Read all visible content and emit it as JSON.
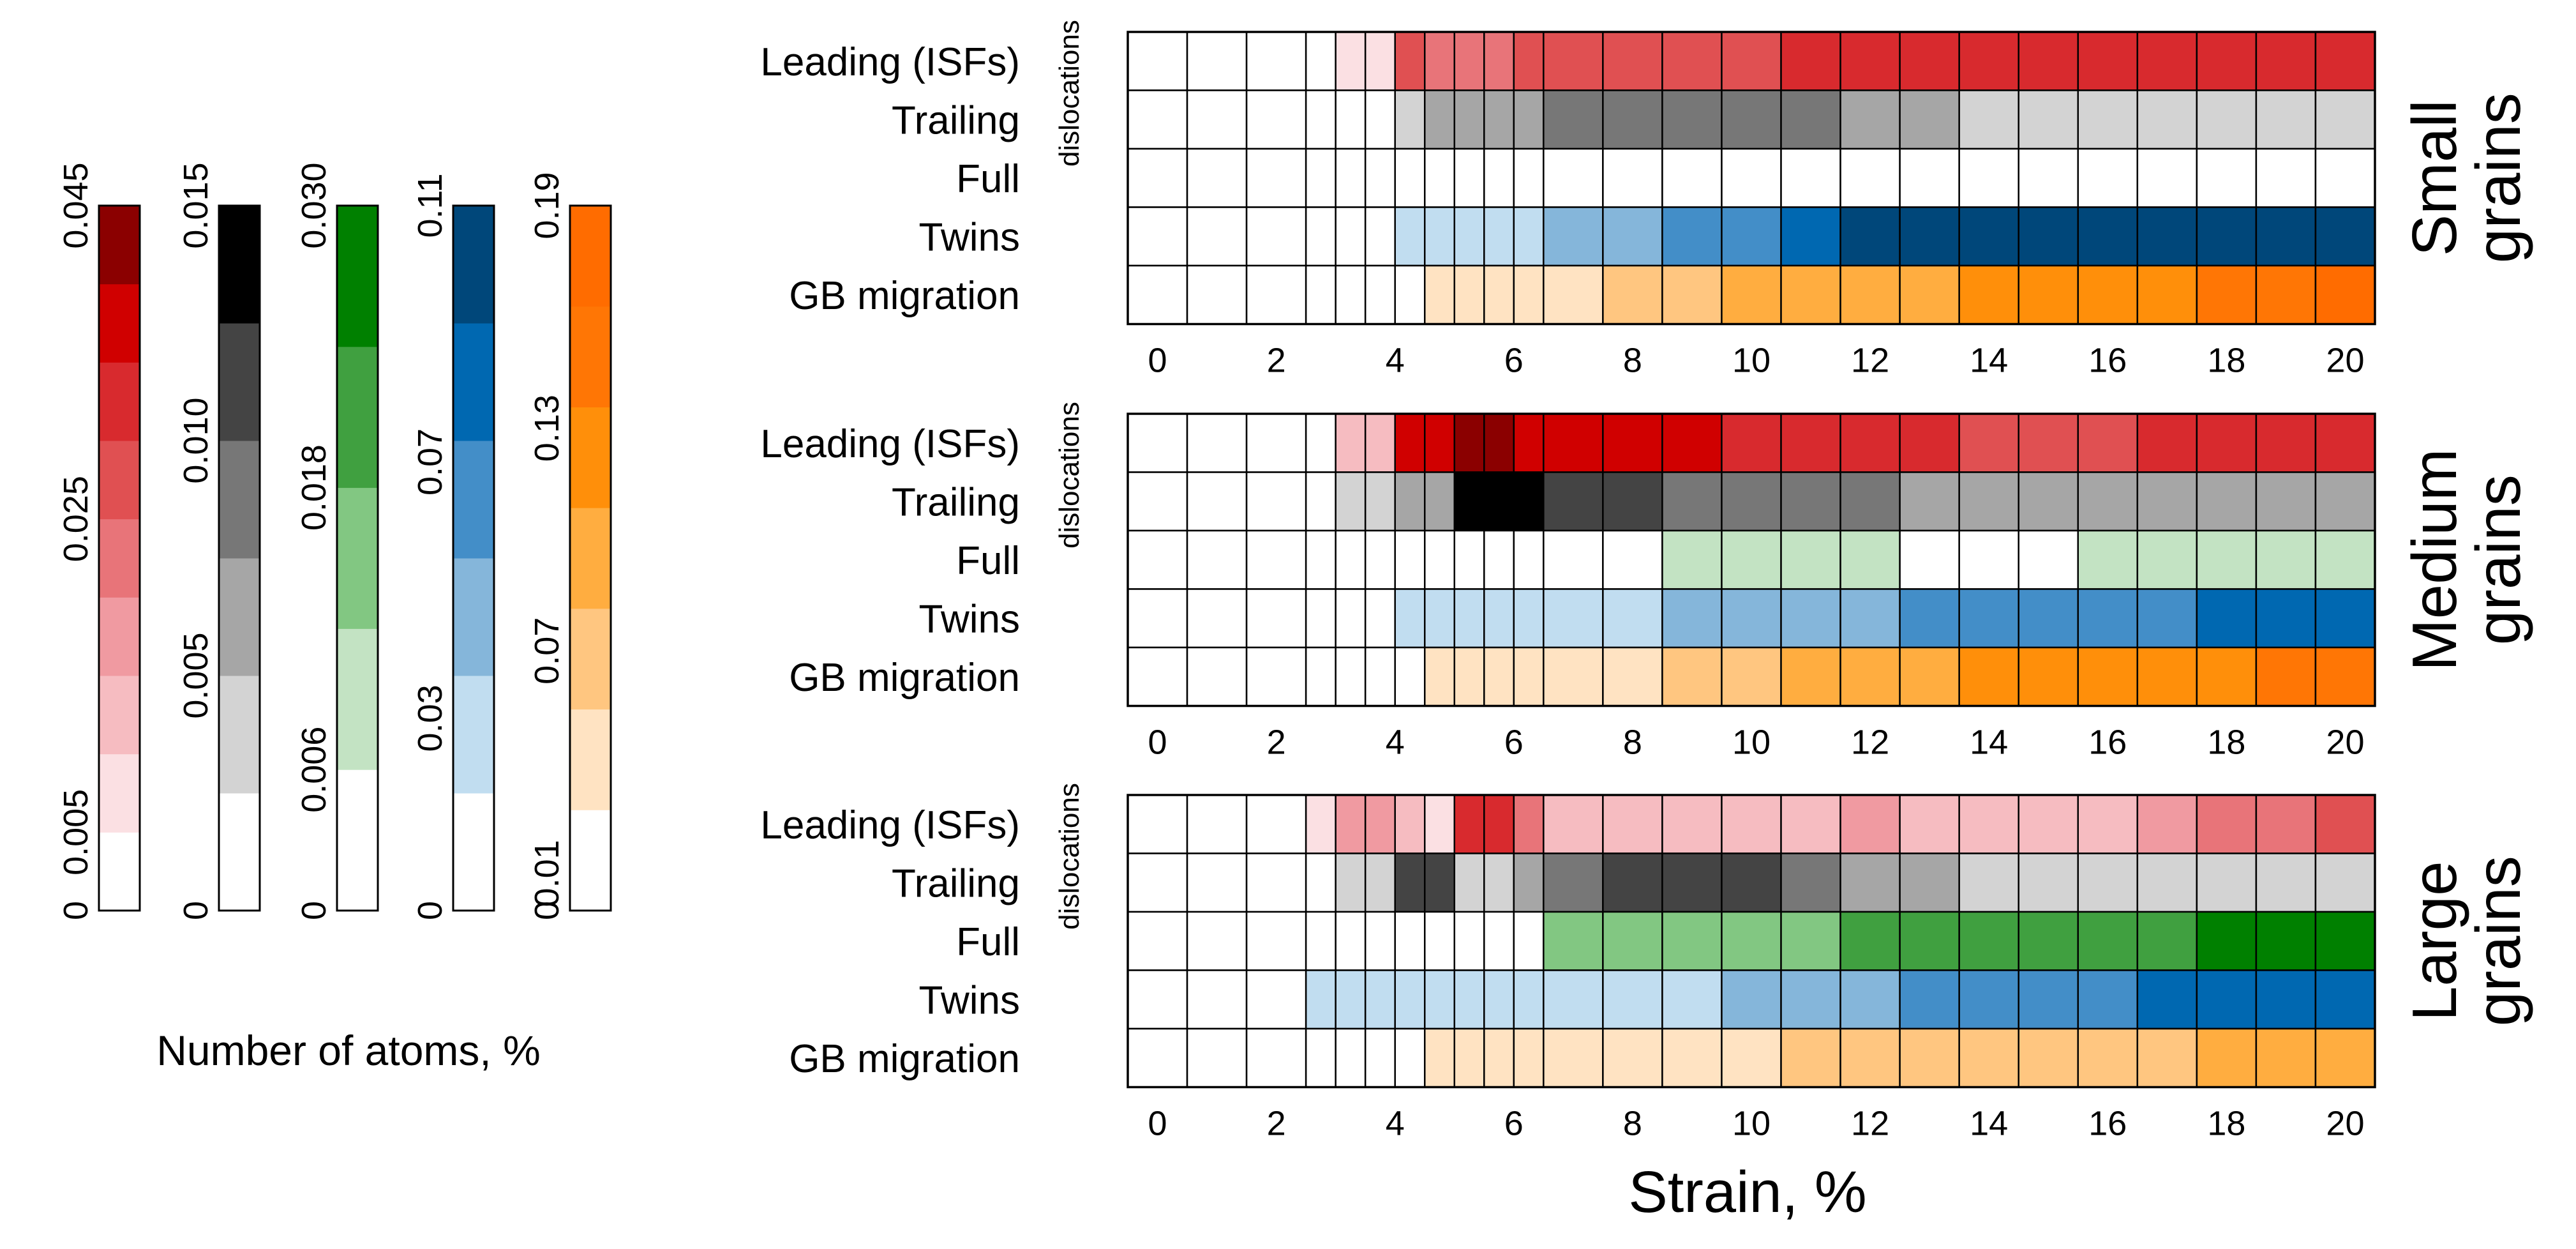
{
  "colors": {
    "red": [
      "#ffffff",
      "#fbe0e3",
      "#f6bcc1",
      "#f09aa1",
      "#e87479",
      "#e05052",
      "#d82a2e",
      "#d00000",
      "#8b0000"
    ],
    "gray": [
      "#ffffff",
      "#d3d3d3",
      "#a6a6a6",
      "#777777",
      "#444444",
      "#000000"
    ],
    "green": [
      "#ffffff",
      "#c3e3c3",
      "#82c782",
      "#40a040",
      "#008000"
    ],
    "blue": [
      "#ffffff",
      "#c1ddf0",
      "#85b6da",
      "#438ec8",
      "#0068b1",
      "#00477a"
    ],
    "orange": [
      "#ffffff",
      "#ffe3c2",
      "#ffc680",
      "#ffad40",
      "#ff8f0a",
      "#ff7605",
      "#ff6c00"
    ],
    "grid": "#000000"
  },
  "legend": {
    "caption": "Number of atoms, %",
    "bars": [
      {
        "palette": "red",
        "levels": 9,
        "ticks": [
          {
            "label": "0",
            "value": 0
          },
          {
            "label": "0.005",
            "value": 0.005
          },
          {
            "label": "0.025",
            "value": 0.025
          },
          {
            "label": "0.045",
            "value": 0.045
          }
        ],
        "max": 0.045
      },
      {
        "palette": "gray",
        "levels": 6,
        "ticks": [
          {
            "label": "0",
            "value": 0
          },
          {
            "label": "0.005",
            "value": 0.005
          },
          {
            "label": "0.010",
            "value": 0.01
          },
          {
            "label": "0.015",
            "value": 0.015
          }
        ],
        "max": 0.015
      },
      {
        "palette": "green",
        "levels": 5,
        "ticks": [
          {
            "label": "0",
            "value": 0
          },
          {
            "label": "0.006",
            "value": 0.006
          },
          {
            "label": "0.018",
            "value": 0.018
          },
          {
            "label": "0.030",
            "value": 0.03
          }
        ],
        "max": 0.03
      },
      {
        "palette": "blue",
        "levels": 6,
        "ticks": [
          {
            "label": "0",
            "value": 0
          },
          {
            "label": "0.03",
            "value": 0.03
          },
          {
            "label": "0.07",
            "value": 0.07
          },
          {
            "label": "0.11",
            "value": 0.11
          }
        ],
        "max": 0.11
      },
      {
        "palette": "orange",
        "levels": 7,
        "ticks": [
          {
            "label": "0",
            "value": 0
          },
          {
            "label": "0.01",
            "value": 0.01
          },
          {
            "label": "0.07",
            "value": 0.07
          },
          {
            "label": "0.13",
            "value": 0.13
          },
          {
            "label": "0.19",
            "value": 0.19
          }
        ],
        "max": 0.19
      }
    ]
  },
  "chart_data": {
    "type": "heatmap",
    "xlabel": "Strain, %",
    "x_tick_labels": [
      "0",
      "2",
      "4",
      "6",
      "8",
      "10",
      "12",
      "14",
      "16",
      "18",
      "20"
    ],
    "x_ticks": [
      0,
      2,
      4,
      6,
      8,
      10,
      12,
      14,
      16,
      18,
      20
    ],
    "x_range": [
      0,
      21
    ],
    "strain_columns": [
      0.5,
      1.5,
      2.5,
      3.25,
      3.75,
      4.25,
      4.75,
      5.25,
      5.75,
      6.25,
      6.75,
      7.5,
      8.5,
      9.5,
      10.5,
      11.5,
      12.5,
      13.5,
      14.5,
      15.5,
      16.5,
      17.5,
      18.5,
      19.5,
      20.5
    ],
    "column_widths": [
      1,
      1,
      1,
      0.5,
      0.5,
      0.5,
      0.5,
      0.5,
      0.5,
      0.5,
      0.5,
      1,
      1,
      1,
      1,
      1,
      1,
      1,
      1,
      1,
      1,
      1,
      1,
      1,
      1
    ],
    "dislocations_label": "dislocations",
    "row_labels": [
      "Leading (ISFs)",
      "Trailing",
      "Full",
      "Twins",
      "GB migration"
    ],
    "row_palettes": [
      "red",
      "gray",
      "green",
      "blue",
      "orange"
    ],
    "panels": [
      {
        "title": "Small grains",
        "title_lines": [
          "Small",
          "grains"
        ],
        "levels": [
          [
            0,
            0,
            0,
            0,
            1,
            1,
            5,
            4,
            4,
            4,
            5,
            5,
            5,
            5,
            5,
            6,
            6,
            6,
            6,
            6,
            6,
            6,
            6,
            6,
            6
          ],
          [
            0,
            0,
            0,
            0,
            0,
            0,
            1,
            2,
            2,
            2,
            2,
            3,
            3,
            3,
            3,
            3,
            2,
            2,
            1,
            1,
            1,
            1,
            1,
            1,
            1
          ],
          [
            0,
            0,
            0,
            0,
            0,
            0,
            0,
            0,
            0,
            0,
            0,
            0,
            0,
            0,
            0,
            0,
            0,
            0,
            0,
            0,
            0,
            0,
            0,
            0,
            0
          ],
          [
            0,
            0,
            0,
            0,
            0,
            0,
            1,
            1,
            1,
            1,
            1,
            2,
            2,
            3,
            3,
            4,
            5,
            5,
            5,
            5,
            5,
            5,
            5,
            5,
            5
          ],
          [
            0,
            0,
            0,
            0,
            0,
            0,
            0,
            1,
            1,
            1,
            1,
            1,
            2,
            2,
            3,
            3,
            3,
            3,
            4,
            4,
            4,
            4,
            5,
            5,
            6
          ]
        ]
      },
      {
        "title": "Medium grains",
        "title_lines": [
          "Medium",
          "grains"
        ],
        "levels": [
          [
            0,
            0,
            0,
            0,
            2,
            2,
            7,
            7,
            8,
            8,
            7,
            7,
            7,
            7,
            6,
            6,
            6,
            6,
            5,
            5,
            5,
            6,
            6,
            6,
            6
          ],
          [
            0,
            0,
            0,
            0,
            1,
            1,
            2,
            2,
            5,
            5,
            5,
            4,
            4,
            3,
            3,
            3,
            3,
            2,
            2,
            2,
            2,
            2,
            2,
            2,
            2
          ],
          [
            0,
            0,
            0,
            0,
            0,
            0,
            0,
            0,
            0,
            0,
            0,
            0,
            0,
            1,
            1,
            1,
            1,
            0,
            0,
            0,
            1,
            1,
            1,
            1,
            1
          ],
          [
            0,
            0,
            0,
            0,
            0,
            0,
            1,
            1,
            1,
            1,
            1,
            1,
            1,
            2,
            2,
            2,
            2,
            3,
            3,
            3,
            3,
            3,
            4,
            4,
            4
          ],
          [
            0,
            0,
            0,
            0,
            0,
            0,
            0,
            1,
            1,
            1,
            1,
            1,
            1,
            2,
            2,
            3,
            3,
            3,
            4,
            4,
            4,
            4,
            4,
            5,
            5
          ]
        ]
      },
      {
        "title": "Large grains",
        "title_lines": [
          "Large",
          "grains"
        ],
        "levels": [
          [
            0,
            0,
            0,
            1,
            3,
            3,
            2,
            1,
            6,
            6,
            4,
            2,
            2,
            2,
            2,
            2,
            3,
            2,
            2,
            2,
            2,
            3,
            4,
            4,
            5
          ],
          [
            0,
            0,
            0,
            0,
            1,
            1,
            4,
            4,
            1,
            1,
            2,
            3,
            4,
            4,
            4,
            3,
            2,
            2,
            1,
            1,
            1,
            1,
            1,
            1,
            1
          ],
          [
            0,
            0,
            0,
            0,
            0,
            0,
            0,
            0,
            0,
            0,
            0,
            2,
            2,
            2,
            2,
            2,
            3,
            3,
            3,
            3,
            3,
            3,
            4,
            4,
            4
          ],
          [
            0,
            0,
            0,
            1,
            1,
            1,
            1,
            1,
            1,
            1,
            1,
            1,
            1,
            1,
            2,
            2,
            2,
            3,
            3,
            3,
            3,
            4,
            4,
            4,
            4
          ],
          [
            0,
            0,
            0,
            0,
            0,
            0,
            0,
            1,
            1,
            1,
            1,
            1,
            1,
            1,
            1,
            2,
            2,
            2,
            2,
            2,
            2,
            2,
            3,
            3,
            3
          ]
        ]
      }
    ]
  }
}
